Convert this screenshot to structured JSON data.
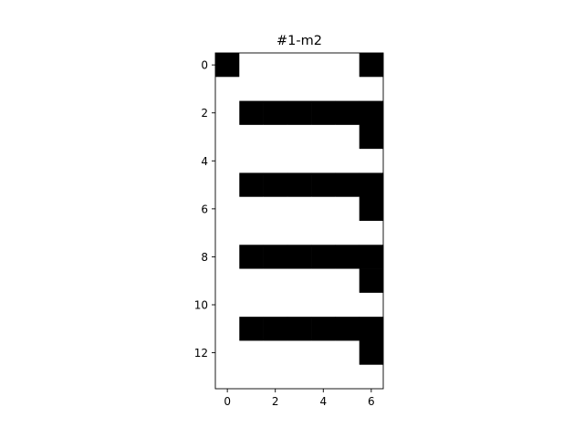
{
  "chart_data": {
    "type": "heatmap",
    "title": "#1-m2",
    "xlabel": "",
    "ylabel": "",
    "colormap": [
      "#ffffff",
      "#000000"
    ],
    "x_ticks": [
      0,
      2,
      4,
      6
    ],
    "y_ticks": [
      0,
      2,
      4,
      6,
      8,
      10,
      12
    ],
    "xlim": [
      -0.5,
      6.5
    ],
    "ylim": [
      13.5,
      -0.5
    ],
    "grid": false,
    "matrix": [
      [
        1,
        0,
        0,
        0,
        0,
        0,
        1
      ],
      [
        0,
        0,
        0,
        0,
        0,
        0,
        0
      ],
      [
        0,
        1,
        1,
        1,
        1,
        1,
        1
      ],
      [
        0,
        0,
        0,
        0,
        0,
        0,
        1
      ],
      [
        0,
        0,
        0,
        0,
        0,
        0,
        0
      ],
      [
        0,
        1,
        1,
        1,
        1,
        1,
        1
      ],
      [
        0,
        0,
        0,
        0,
        0,
        0,
        1
      ],
      [
        0,
        0,
        0,
        0,
        0,
        0,
        0
      ],
      [
        0,
        1,
        1,
        1,
        1,
        1,
        1
      ],
      [
        0,
        0,
        0,
        0,
        0,
        0,
        1
      ],
      [
        0,
        0,
        0,
        0,
        0,
        0,
        0
      ],
      [
        0,
        1,
        1,
        1,
        1,
        1,
        1
      ],
      [
        0,
        0,
        0,
        0,
        0,
        0,
        1
      ],
      [
        0,
        0,
        0,
        0,
        0,
        0,
        0
      ]
    ]
  }
}
